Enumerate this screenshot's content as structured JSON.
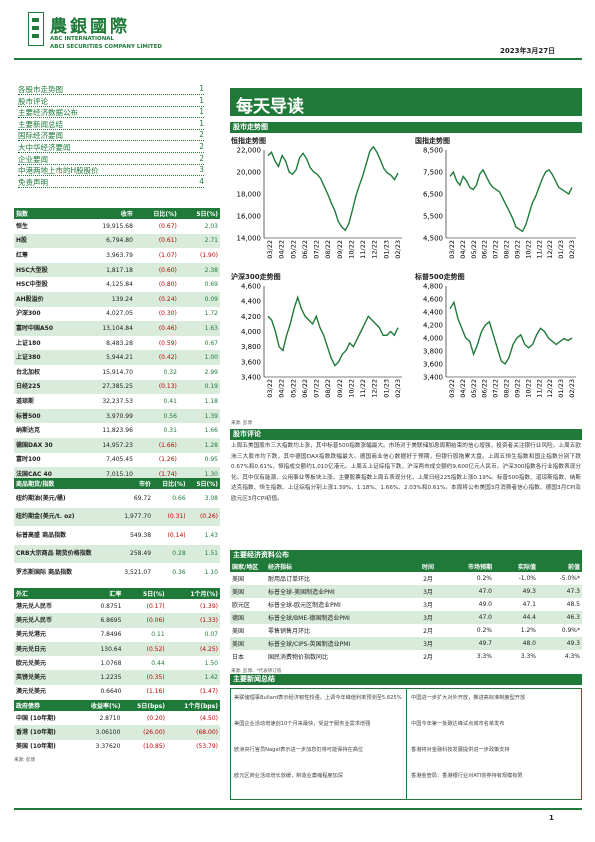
{
  "header": {
    "brand_cn": "農銀國際",
    "brand_en1": "ABC INTERNATIONAL",
    "brand_en2": "ABCI SECURITIES COMPANY LIMITED",
    "date": "2023年3月27日"
  },
  "toc": [
    {
      "label": "各股市走势图",
      "page": "1"
    },
    {
      "label": "股市评论",
      "page": "1"
    },
    {
      "label": "主要经济数据公布",
      "page": "1"
    },
    {
      "label": "主要新闻总结",
      "page": "1"
    },
    {
      "label": "国际经济要闻",
      "page": "2"
    },
    {
      "label": "大中华经济要闻",
      "page": "2"
    },
    {
      "label": "企业要闻",
      "page": "2"
    },
    {
      "label": "中港两地上市的H股股价",
      "page": "3"
    },
    {
      "label": "免责声明",
      "page": "4"
    }
  ],
  "indices": {
    "headers": [
      "指数",
      "收市",
      "日比(%)",
      "5日(%)"
    ],
    "rows": [
      {
        "name": "恒生",
        "close": "19,915.68",
        "d1": "(0.67)",
        "d5": "2.03"
      },
      {
        "name": "H股",
        "close": "6,794.80",
        "d1": "(0.61)",
        "d5": "2.71"
      },
      {
        "name": "红筹",
        "close": "3,963.79",
        "d1": "(1.07)",
        "d5": "(1.90)"
      },
      {
        "name": "HSC大型股",
        "close": "1,817.18",
        "d1": "(0.60)",
        "d5": "2.38"
      },
      {
        "name": "HSC中型股",
        "close": "4,125.84",
        "d1": "(0.80)",
        "d5": "0.69"
      },
      {
        "name": "AH股溢价",
        "close": "139.24",
        "d1": "(0.24)",
        "d5": "0.09"
      },
      {
        "name": "沪深300",
        "close": "4,027.05",
        "d1": "(0.30)",
        "d5": "1.72"
      },
      {
        "name": "富时中国A50",
        "close": "13,104.84",
        "d1": "(0.46)",
        "d5": "1.63"
      },
      {
        "name": "上证180",
        "close": "8,483.28",
        "d1": "(0.59)",
        "d5": "0.67"
      },
      {
        "name": "上证380",
        "close": "5,944.21",
        "d1": "(0.42)",
        "d5": "1.00"
      },
      {
        "name": "台北加权",
        "close": "15,914.70",
        "d1": "0.32",
        "d5": "2.99"
      },
      {
        "name": "日经225",
        "close": "27,385.25",
        "d1": "(0.13)",
        "d5": "0.19"
      },
      {
        "name": "道琼斯",
        "close": "32,237.53",
        "d1": "0.41",
        "d5": "1.18"
      },
      {
        "name": "标普500",
        "close": "3,970.99",
        "d1": "0.56",
        "d5": "1.39"
      },
      {
        "name": "纳斯达克",
        "close": "11,823.96",
        "d1": "0.31",
        "d5": "1.66"
      },
      {
        "name": "德国DAX 30",
        "close": "14,957.23",
        "d1": "(1.66)",
        "d5": "1.28"
      },
      {
        "name": "富时100",
        "close": "7,405.45",
        "d1": "(1.26)",
        "d5": "0.95"
      },
      {
        "name": "法国CAC 40",
        "close": "7,015.10",
        "d1": "(1.74)",
        "d5": "1.30"
      }
    ]
  },
  "commodities": {
    "headers": [
      "商品期货/指数",
      "市价",
      "日比(%)",
      "5日(%)"
    ],
    "rows": [
      {
        "name": "纽约期油(美元/桶)",
        "close": "69.72",
        "d1": "0.66",
        "d5": "3.08"
      },
      {
        "name": "纽约期金(美元/t. oz)",
        "close": "1,977.70",
        "d1": "(0.31)",
        "d5": "(0.26)"
      },
      {
        "name": "标普高盛 商品指数",
        "close": "549.38",
        "d1": "(0.14)",
        "d5": "1.43"
      },
      {
        "name": "CRB大宗商品 期货价格指数",
        "close": "258.49",
        "d1": "0.28",
        "d5": "1.51"
      },
      {
        "name": "罗杰斯国际 商品指数",
        "close": "3,521.07",
        "d1": "0.36",
        "d5": "1.10"
      }
    ]
  },
  "fx": {
    "headers": [
      "外汇",
      "汇率",
      "5日(%)",
      "1个月(%)"
    ],
    "rows": [
      {
        "name": "港元兑人民币",
        "close": "0.8751",
        "d1": "(0.17)",
        "d5": "(1.39)"
      },
      {
        "name": "美元兑人民币",
        "close": "6.8695",
        "d1": "(0.06)",
        "d5": "(1.33)"
      },
      {
        "name": "美元兑港元",
        "close": "7.8496",
        "d1": "0.11",
        "d5": "0.07"
      },
      {
        "name": "美元兑日元",
        "close": "130.64",
        "d1": "(0.52)",
        "d5": "(4.25)"
      },
      {
        "name": "欧元兑美元",
        "close": "1.0768",
        "d1": "0.44",
        "d5": "1.50"
      },
      {
        "name": "英镑兑美元",
        "close": "1.2235",
        "d1": "(0.35)",
        "d5": "1.42"
      },
      {
        "name": "澳元兑美元",
        "close": "0.6640",
        "d1": "(1.16)",
        "d5": "(1.47)"
      }
    ]
  },
  "bonds": {
    "headers": [
      "政府债券",
      "收益率(%)",
      "5日(bps)",
      "1个月(bps)"
    ],
    "rows": [
      {
        "name": "中国 (10年期)",
        "close": "2.8710",
        "d1": "(0.20)",
        "d5": "(4.50)"
      },
      {
        "name": "香港 (10年期)",
        "close": "3.06100",
        "d1": "(26.00)",
        "d5": "(68.00)"
      },
      {
        "name": "美国 (10年期)",
        "close": "3.37620",
        "d1": "(10.85)",
        "d5": "(53.79)"
      }
    ]
  },
  "source_left": "来源: 彭博",
  "banner": "每天导读",
  "section_charts": "股市走势图",
  "charts": [
    {
      "type": "line",
      "title": "恒指走势图",
      "ylim": [
        14000,
        22000
      ],
      "yticks": [
        "22,000",
        "20,000",
        "18,000",
        "16,000",
        "14,000"
      ],
      "xticks": [
        "03/22",
        "04/22",
        "05/22",
        "06/22",
        "07/22",
        "08/22",
        "09/22",
        "10/22",
        "11/22",
        "12/22",
        "01/23",
        "02/23"
      ],
      "values": [
        21500,
        21800,
        21000,
        20500,
        21500,
        21000,
        20000,
        19800,
        20200,
        21300,
        21700,
        21200,
        20400,
        20000,
        19800,
        19400,
        18700,
        18000,
        17200,
        16500,
        15500,
        15000,
        14700,
        15300,
        16500,
        17800,
        18800,
        19700,
        20800,
        21900,
        22300,
        21800,
        21100,
        20300,
        19900,
        19700,
        19300,
        19900
      ]
    },
    {
      "type": "line",
      "title": "国指走势图",
      "ylim": [
        4500,
        8500
      ],
      "yticks": [
        "8,500",
        "7,500",
        "6,500",
        "5,500",
        "4,500"
      ],
      "xticks": [
        "03/22",
        "04/22",
        "05/22",
        "06/22",
        "07/22",
        "08/22",
        "09/22",
        "10/22",
        "11/22",
        "12/22",
        "01/23",
        "02/23"
      ],
      "values": [
        7300,
        7500,
        7100,
        6900,
        7300,
        7100,
        6800,
        6700,
        6900,
        7400,
        7600,
        7300,
        7000,
        6800,
        6700,
        6600,
        6300,
        6000,
        5700,
        5400,
        5000,
        4900,
        4800,
        5100,
        5600,
        6100,
        6400,
        6800,
        7200,
        7500,
        7600,
        7400,
        7100,
        6800,
        6700,
        6600,
        6500,
        6800
      ]
    },
    {
      "type": "line",
      "title": "沪深300走势图",
      "ylim": [
        3400,
        4600
      ],
      "yticks": [
        "4,600",
        "4,400",
        "4,200",
        "4,000",
        "3,800",
        "3,600",
        "3,400"
      ],
      "xticks": [
        "03/22",
        "04/22",
        "05/22",
        "06/22",
        "07/22",
        "08/22",
        "09/22",
        "10/22",
        "11/22",
        "12/22",
        "01/23",
        "02/23"
      ],
      "values": [
        4200,
        4150,
        4000,
        3800,
        3750,
        3950,
        4100,
        4300,
        4450,
        4300,
        4200,
        4150,
        4100,
        4200,
        4050,
        3950,
        3800,
        3650,
        3550,
        3600,
        3700,
        3750,
        3850,
        3800,
        3900,
        4000,
        4100,
        4200,
        4150,
        4100,
        4050,
        3950,
        3950,
        4000,
        3950,
        4050
      ]
    },
    {
      "type": "line",
      "title": "标普500走势图",
      "ylim": [
        3400,
        4800
      ],
      "yticks": [
        "4,800",
        "4,600",
        "4,400",
        "4,200",
        "4,000",
        "3,800",
        "3,600",
        "3,400"
      ],
      "xticks": [
        "03/22",
        "04/22",
        "05/22",
        "06/22",
        "07/22",
        "08/22",
        "09/22",
        "10/22",
        "11/22",
        "12/22",
        "01/23",
        "02/23"
      ],
      "values": [
        4450,
        4550,
        4300,
        4150,
        4000,
        3950,
        3750,
        3900,
        4100,
        4200,
        4250,
        4050,
        3850,
        3650,
        3600,
        3700,
        3900,
        4000,
        4050,
        3900,
        3850,
        3900,
        4050,
        4150,
        4100,
        4000,
        3950,
        3900,
        3950,
        3990,
        3960,
        4000
      ]
    }
  ],
  "chart_source": "来源: 彭博",
  "section_commentary": "股市评论",
  "commentary": "上周五美国股市三大指数均上涨，其中标普500指数涨幅最大。市场对于美联储加息周期结束的信心增强，投资者关注银行业风险。上周五欧洲三大股市均下跌，其中德国DAX指数跌幅最大。德国商业信心数据好于预期，但银行股拖累大盘。上周五恒生指数和国企指数分别下跌0.67%和0.61%，恒指成交额约1,010亿港元。上周五上证综指下跌，沪深两市成交额约9,600亿元人民币。沪深300指数各行业指数表现分化。其中仅有能源、公用事业等板块上涨。主要股票指数上周五表现分化，上周日经225指数上涨0.19%。标普500指数、道琼斯指数、纳斯达克指数、恒生指数、上证综指分别上涨1.39%、1.18%、1.66%、2.03%和0.61%。本周将公布美国3月消费者信心指数、德国3月CPI及欧元区3月CPI初值。",
  "section_data": "主要经济资料公布",
  "econ": {
    "headers": [
      "国家/地区",
      "经济指标",
      "时间",
      "市场预期",
      "实际值",
      "前值"
    ],
    "rows": [
      {
        "region": "美国",
        "indicator": "耐用品订单环比",
        "time": "2月",
        "expected": "0.2%",
        "actual": "-1.0%",
        "prev": "-5.0%*"
      },
      {
        "region": "美国",
        "indicator": "标普全球-美国制造业PMI",
        "time": "3月",
        "expected": "47.0",
        "actual": "49.3",
        "prev": "47.3"
      },
      {
        "region": "欧元区",
        "indicator": "标普全球-欧元区制造业PMI",
        "time": "3月",
        "expected": "49.0",
        "actual": "47.1",
        "prev": "48.5"
      },
      {
        "region": "德国",
        "indicator": "标普全球/BME-德国制造业PMI",
        "time": "3月",
        "expected": "47.0",
        "actual": "44.4",
        "prev": "46.3"
      },
      {
        "region": "美国",
        "indicator": "零售销售月环比",
        "time": "2月",
        "expected": "0.2%",
        "actual": "1.2%",
        "prev": "0.9%*"
      },
      {
        "region": "美国",
        "indicator": "标普全球/CIPS-英国制造业PMI",
        "time": "3月",
        "expected": "49.7",
        "actual": "48.0",
        "prev": "49.3"
      },
      {
        "region": "日本",
        "indicator": "国民消费物价指数同比",
        "time": "2月",
        "expected": "3.3%",
        "actual": "3.3%",
        "prev": "4.3%"
      }
    ]
  },
  "econ_source": "来源: 彭博、*代表修订值",
  "section_news": "主要新闻总结",
  "news_left": [
    "美联储理事Bullard表示经济韧性较强，上调今年峰值利率预测至5.625%",
    "美国企业活动增速创10个月来最快，受益于服务业需求增强",
    "欧洲央行官员Nagel表示进一步加息仍将可能保持在高位",
    "欧元区商业活动增长放缓，制造业萎缩程度加深"
  ],
  "news_right": [
    "中国进一步扩大对外开放，推进高标准制度型开放",
    "中国今年第一批碳达峰试点城市名单发布",
    "香港将对金融科技发展提供进一步政策支持",
    "香港金管局：香港银行业对ATI债券持有规模有限"
  ],
  "page_number": "1"
}
